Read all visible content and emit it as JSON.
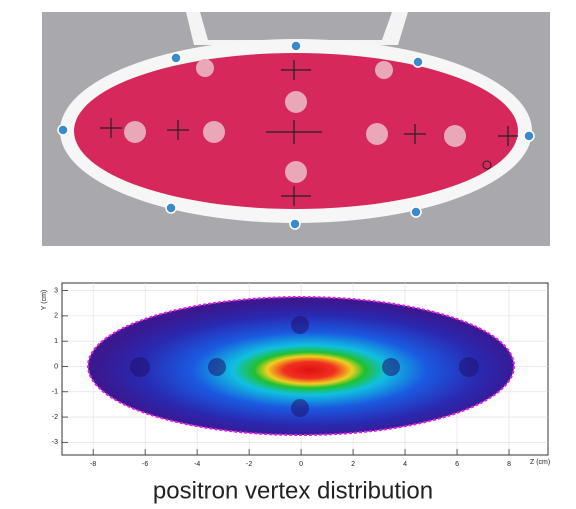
{
  "chart_data": {
    "type": "heatmap",
    "title": "positron vertex distribution",
    "x_label": "Z (cm)",
    "y_label": "Y (cm)",
    "xlim": [
      -9.2,
      9.5
    ],
    "xticks": [
      -8,
      -6,
      -4,
      -2,
      0,
      2,
      4,
      6,
      8
    ],
    "ylim": [
      -3.5,
      3.3
    ],
    "yticks": [
      -3,
      -2,
      -1,
      0,
      1,
      2,
      3
    ],
    "grid": true
  }
}
